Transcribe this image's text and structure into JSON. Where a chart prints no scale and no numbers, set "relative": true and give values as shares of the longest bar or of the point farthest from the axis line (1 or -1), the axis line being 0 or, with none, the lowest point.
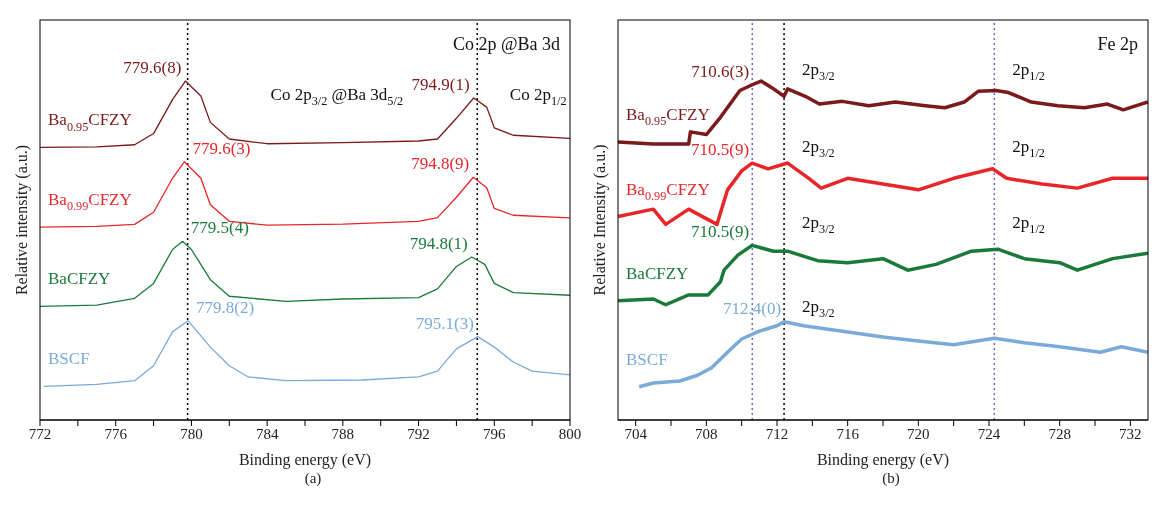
{
  "chart_data": [
    {
      "type": "line",
      "title": "Co 2p @Ba 3d",
      "xlabel": "Binding energy (eV)",
      "ylabel": "Relative intensity (a.u.)",
      "relative": true,
      "xlim": [
        772,
        800
      ],
      "xticks": [
        772,
        {
          "value": 774,
          "label": null
        },
        776,
        {
          "value": 778,
          "label": null
        },
        780,
        {
          "value": 782,
          "label": null
        },
        784,
        {
          "value": 786,
          "label": null
        },
        788,
        {
          "value": 790,
          "label": null
        },
        792,
        {
          "value": 794,
          "label": null
        },
        796,
        {
          "value": 798,
          "label": null
        },
        800
      ],
      "marker": "none",
      "line_style": "solid",
      "ref_lines": [
        {
          "axis": "x",
          "value": 779.8,
          "color": "#000000",
          "line_style": "dotted"
        },
        {
          "axis": "x",
          "value": 795.1,
          "color": "#000000",
          "line_style": "dotted"
        }
      ],
      "annotations": [
        {
          "text": "779.6(8)",
          "x": 779.68,
          "y": 1.0
        },
        {
          "text": "794.9(1)",
          "x": 794.91,
          "y": 0.95
        },
        {
          "text": "779.6(3)",
          "x": 779.63,
          "y": 0.762
        },
        {
          "text": "794.8(9)",
          "x": 794.89,
          "y": 0.716
        },
        {
          "text": "779.5(4)",
          "x": 779.54,
          "y": 0.527
        },
        {
          "text": "794.8(1)",
          "x": 794.81,
          "y": 0.481
        },
        {
          "text": "779.8(2)",
          "x": 779.82,
          "y": 0.293
        },
        {
          "text": "795.1(3)",
          "x": 795.13,
          "y": 0.246
        },
        "Co 2p$_{3/2}$ @Ba 3d$_{5/2}$",
        "Co 2p$_{1/2}$",
        "(a)"
      ],
      "series": [
        {
          "name": "Ba$_{0.95}$CFZY",
          "color": "#7b1a1a",
          "x": [
            772,
            775,
            777,
            778,
            779,
            779.68,
            780.5,
            781,
            782,
            784,
            788,
            792,
            793,
            794,
            794.91,
            795.6,
            796,
            797,
            800
          ],
          "values": [
            0.804,
            0.806,
            0.812,
            0.845,
            0.945,
            1.0,
            0.956,
            0.878,
            0.829,
            0.815,
            0.818,
            0.823,
            0.829,
            0.89,
            0.95,
            0.923,
            0.862,
            0.84,
            0.831
          ]
        },
        {
          "name": "Ba$_{0.99}$CFZY",
          "color": "#e8262a",
          "x": [
            772,
            775,
            777,
            778,
            779,
            779.63,
            780.5,
            781,
            782,
            784,
            788,
            792,
            793,
            794,
            794.89,
            795.6,
            796,
            797,
            800
          ],
          "values": [
            0.569,
            0.571,
            0.577,
            0.613,
            0.713,
            0.762,
            0.713,
            0.635,
            0.586,
            0.575,
            0.578,
            0.586,
            0.597,
            0.657,
            0.716,
            0.685,
            0.624,
            0.604,
            0.596
          ]
        },
        {
          "name": "BaCFZY",
          "color": "#1a7a3a",
          "x": [
            772,
            775,
            777,
            778,
            779,
            779.54,
            780,
            781,
            782,
            785,
            788,
            792,
            793,
            794,
            794.81,
            795.5,
            796,
            797,
            800
          ],
          "values": [
            0.335,
            0.339,
            0.359,
            0.403,
            0.503,
            0.527,
            0.503,
            0.414,
            0.365,
            0.35,
            0.357,
            0.361,
            0.387,
            0.453,
            0.481,
            0.459,
            0.403,
            0.376,
            0.368
          ]
        },
        {
          "name": "BSCF",
          "color": "#7aaad8",
          "x": [
            772.2,
            775,
            777,
            778,
            779,
            779.82,
            781,
            782,
            783,
            785,
            789,
            792,
            793,
            794,
            795.13,
            796,
            797,
            798,
            800
          ],
          "values": [
            0.099,
            0.105,
            0.116,
            0.16,
            0.26,
            0.293,
            0.215,
            0.16,
            0.127,
            0.116,
            0.118,
            0.127,
            0.144,
            0.21,
            0.246,
            0.215,
            0.171,
            0.144,
            0.133
          ]
        }
      ]
    },
    {
      "type": "line",
      "title": "Fe 2p",
      "xlabel": "Binding energy (eV)",
      "ylabel": "Relative Intensity (a.u.)",
      "relative": true,
      "xlim": [
        703,
        733
      ],
      "xticks": [
        704,
        {
          "value": 706,
          "label": null
        },
        708,
        {
          "value": 710,
          "label": null
        },
        712,
        {
          "value": 714,
          "label": null
        },
        716,
        {
          "value": 718,
          "label": null
        },
        720,
        {
          "value": 722,
          "label": null
        },
        724,
        {
          "value": 726,
          "label": null
        },
        728,
        {
          "value": 730,
          "label": null
        },
        732
      ],
      "marker": "none",
      "line_style": "solid",
      "ref_lines": [
        {
          "axis": "x",
          "value": 712.4,
          "color": "#000000",
          "line_style": "dotted"
        },
        {
          "axis": "x",
          "value": 710.6,
          "color": "#6a6ad8",
          "line_style": "dotted"
        },
        {
          "axis": "x",
          "value": 724.3,
          "color": "#6a6ad8",
          "line_style": "dotted"
        }
      ],
      "annotations": [
        {
          "text": "710.6(3)",
          "x": 710.6,
          "y": 0.989
        },
        {
          "text": "710.5(9)",
          "x": 710.59,
          "y": 0.758
        },
        {
          "text": "710.5(9)",
          "x": 710.59,
          "y": 0.515
        },
        {
          "text": "712.4(0)",
          "x": 712.4,
          "y": 0.29
        },
        {
          "text": "2p$_{3/2}$",
          "x": 712.4,
          "y": 1.017
        },
        {
          "text": "2p$_{3/2}$",
          "x": 712.4,
          "y": 0.791
        },
        {
          "text": "2p$_{3/2}$",
          "x": 712.4,
          "y": 0.566
        },
        {
          "text": "2p$_{3/2}$",
          "x": 712.4,
          "y": 0.318
        },
        {
          "text": "2p$_{1/2}$",
          "x": 724.3,
          "y": 1.017
        },
        {
          "text": "2p$_{1/2}$",
          "x": 724.3,
          "y": 0.791
        },
        {
          "text": "2p$_{1/2}$",
          "x": 724.3,
          "y": 0.566
        },
        "(b)"
      ],
      "series": [
        {
          "name": "Ba$_{0.95}$CFZY",
          "color": "#7b1a1a",
          "x": [
            703,
            705,
            707,
            707.1,
            708,
            708.8,
            709.9,
            710.6,
            711.1,
            711.8,
            712.4,
            712.6,
            713.6,
            714.4,
            715.7,
            717.2,
            718.7,
            720.4,
            721.5,
            722.6,
            723.4,
            724.4,
            725.1,
            726.4,
            727.9,
            729.4,
            730.7,
            731.6,
            733
          ],
          "values": [
            0.82,
            0.814,
            0.814,
            0.85,
            0.842,
            0.893,
            0.972,
            0.989,
            1.0,
            0.977,
            0.955,
            0.977,
            0.955,
            0.932,
            0.94,
            0.927,
            0.938,
            0.927,
            0.921,
            0.938,
            0.97,
            0.972,
            0.966,
            0.938,
            0.927,
            0.921,
            0.932,
            0.915,
            0.938
          ]
        },
        {
          "name": "Ba$_{0.99}$CFZY",
          "color": "#e8262a",
          "x": [
            703,
            705,
            705.7,
            707,
            708.6,
            709.2,
            710,
            710.59,
            711.5,
            712.6,
            713.8,
            714.5,
            716,
            718,
            720,
            722,
            724.2,
            725,
            727,
            729,
            731,
            733
          ],
          "values": [
            0.6,
            0.622,
            0.577,
            0.622,
            0.577,
            0.679,
            0.735,
            0.758,
            0.741,
            0.758,
            0.713,
            0.684,
            0.713,
            0.696,
            0.679,
            0.713,
            0.741,
            0.713,
            0.696,
            0.684,
            0.713,
            0.713
          ]
        },
        {
          "name": "BaCFZY",
          "color": "#1a7a3a",
          "x": [
            703,
            705,
            705.7,
            707,
            708.1,
            708.8,
            709,
            709.8,
            710.59,
            711.8,
            712.6,
            714.3,
            716,
            718,
            719.4,
            721,
            723,
            724.5,
            726,
            728,
            729,
            731,
            733
          ],
          "values": [
            0.352,
            0.357,
            0.34,
            0.369,
            0.369,
            0.408,
            0.442,
            0.487,
            0.515,
            0.498,
            0.498,
            0.47,
            0.464,
            0.476,
            0.442,
            0.459,
            0.498,
            0.504,
            0.476,
            0.464,
            0.442,
            0.476,
            0.492
          ]
        },
        {
          "name": "BSCF",
          "color": "#7aaad8",
          "x": [
            704.2,
            705,
            706.5,
            707.5,
            708.3,
            709.3,
            710,
            711,
            712,
            712.4,
            713.5,
            715,
            716.5,
            718,
            720,
            722,
            724.3,
            726,
            728,
            730.3,
            731.5,
            733
          ],
          "values": [
            0.098,
            0.109,
            0.115,
            0.132,
            0.154,
            0.205,
            0.239,
            0.262,
            0.278,
            0.29,
            0.278,
            0.267,
            0.256,
            0.245,
            0.233,
            0.222,
            0.241,
            0.228,
            0.216,
            0.2,
            0.216,
            0.2
          ]
        }
      ]
    }
  ]
}
